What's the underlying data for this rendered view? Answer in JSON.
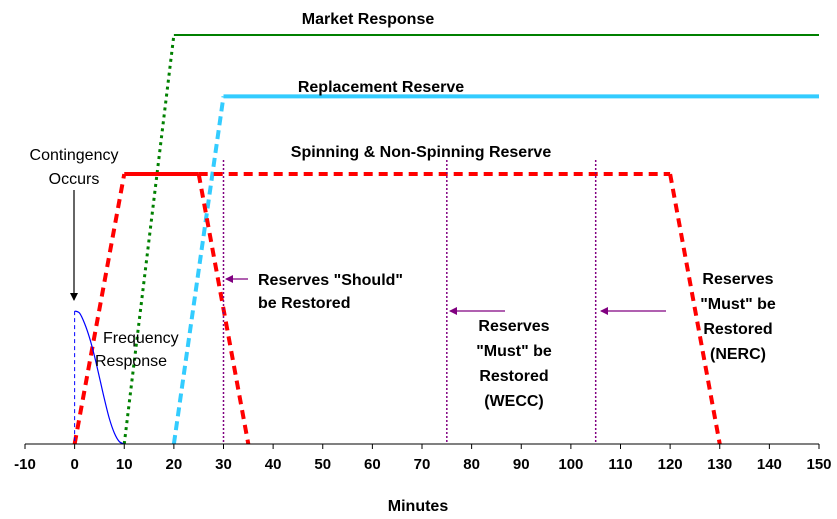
{
  "chart_data": {
    "type": "line",
    "xlabel": "Minutes",
    "ylabel": "",
    "xlim": [
      -10,
      150
    ],
    "ylim": [
      0,
      10
    ],
    "x_ticks": [
      -10,
      0,
      10,
      20,
      30,
      40,
      50,
      60,
      70,
      80,
      90,
      100,
      110,
      120,
      130,
      140,
      150
    ],
    "grid": false,
    "colors": {
      "market": "#008000",
      "replacement": "#33CCFF",
      "spinning": "#FF0000",
      "frequency": "#0000FF",
      "markers": "#800080",
      "axis": "#000000"
    },
    "series": [
      {
        "name": "Market Response",
        "ramp_points": [
          [
            10,
            0
          ],
          [
            20,
            10
          ]
        ],
        "flat_points": [
          [
            20,
            10
          ],
          [
            150,
            10
          ]
        ]
      },
      {
        "name": "Replacement Reserve",
        "ramp_points": [
          [
            20,
            0
          ],
          [
            30,
            8.5
          ]
        ],
        "flat_points": [
          [
            30,
            8.5
          ],
          [
            150,
            8.5
          ]
        ]
      },
      {
        "name": "Spinning & Non-Spinning Reserve",
        "ramp_up_points": [
          [
            0,
            0
          ],
          [
            10,
            6.6
          ]
        ],
        "flat_solid_points": [
          [
            10,
            6.6
          ],
          [
            25,
            6.6
          ]
        ],
        "flat_dashed_points": [
          [
            25,
            6.6
          ],
          [
            120,
            6.6
          ]
        ],
        "ramp_down_1_points": [
          [
            25,
            6.6
          ],
          [
            35,
            0
          ]
        ],
        "ramp_down_2_points": [
          [
            120,
            6.6
          ],
          [
            130,
            0
          ]
        ]
      },
      {
        "name": "Frequency Response",
        "points": [
          [
            0,
            3.25
          ],
          [
            1,
            3.2
          ],
          [
            2,
            2.95
          ],
          [
            3,
            2.6
          ],
          [
            4,
            2.15
          ],
          [
            5,
            1.63
          ],
          [
            6,
            1.1
          ],
          [
            7,
            0.62
          ],
          [
            8,
            0.27
          ],
          [
            9,
            0.06
          ],
          [
            10,
            0
          ]
        ]
      }
    ],
    "markers": [
      {
        "x": 0,
        "style": "dashed",
        "color": "#0000FF"
      },
      {
        "x": 30,
        "style": "dotted",
        "color": "#800080"
      },
      {
        "x": 75,
        "style": "dotted",
        "color": "#800080"
      },
      {
        "x": 105,
        "style": "dotted",
        "color": "#800080"
      }
    ],
    "labels": {
      "market": "Market Response",
      "replacement": "Replacement Reserve",
      "spinning": "Spinning & Non-Spinning Reserve",
      "contingency": [
        "Contingency",
        "Occurs"
      ],
      "frequency": [
        "Frequency",
        "Response"
      ],
      "should": [
        "Reserves \"Should\"",
        "be Restored"
      ],
      "wecc": [
        "Reserves",
        "\"Must\" be",
        "Restored",
        "(WECC)"
      ],
      "nerc": [
        "Reserves",
        "\"Must\" be",
        "Restored",
        "(NERC)"
      ]
    }
  }
}
